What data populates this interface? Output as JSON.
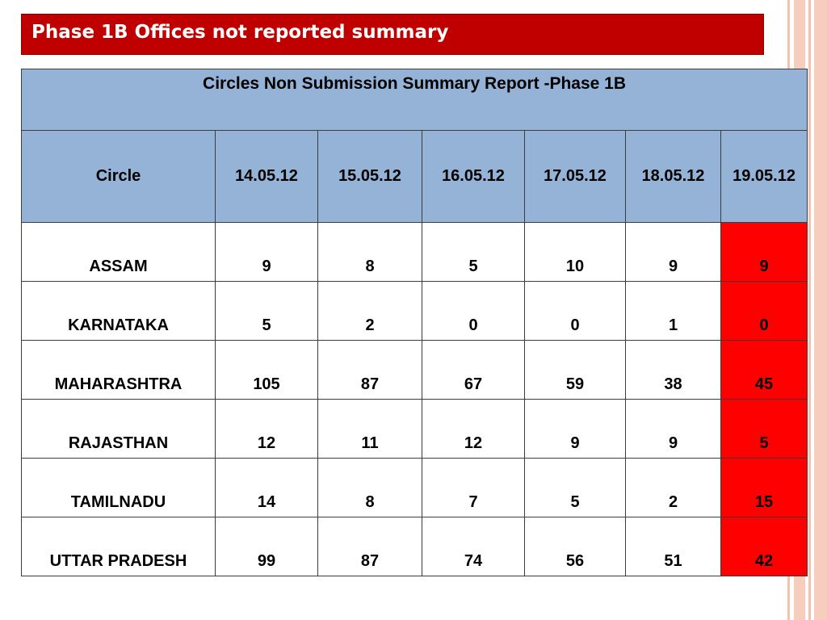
{
  "slide": {
    "title": "Phase 1B Offices not reported summary"
  },
  "report": {
    "title": "Circles Non Submission Summary Report -Phase 1B",
    "columns": [
      "Circle",
      "14.05.12",
      "15.05.12",
      "16.05.12",
      "17.05.12",
      "18.05.12",
      "19.05.12"
    ],
    "rows": [
      {
        "circle": "ASSAM",
        "values": [
          "9",
          "8",
          "5",
          "10",
          "9",
          "9"
        ]
      },
      {
        "circle": "KARNATAKA",
        "values": [
          "5",
          "2",
          "0",
          "0",
          "1",
          "0"
        ]
      },
      {
        "circle": "MAHARASHTRA",
        "values": [
          "105",
          "87",
          "67",
          "59",
          "38",
          "45"
        ]
      },
      {
        "circle": "RAJASTHAN",
        "values": [
          "12",
          "11",
          "12",
          "9",
          "9",
          "5"
        ]
      },
      {
        "circle": "TAMILNADU",
        "values": [
          "14",
          "8",
          "7",
          "5",
          "2",
          "15"
        ]
      },
      {
        "circle": "UTTAR PRADESH",
        "values": [
          "99",
          "87",
          "74",
          "56",
          "51",
          "42"
        ]
      }
    ],
    "highlight_color": "#ff0000",
    "header_color": "#95b3d7"
  },
  "theme": {
    "title_bar_color": "#c00000",
    "side_stripe_color": "#f7cdbd"
  }
}
